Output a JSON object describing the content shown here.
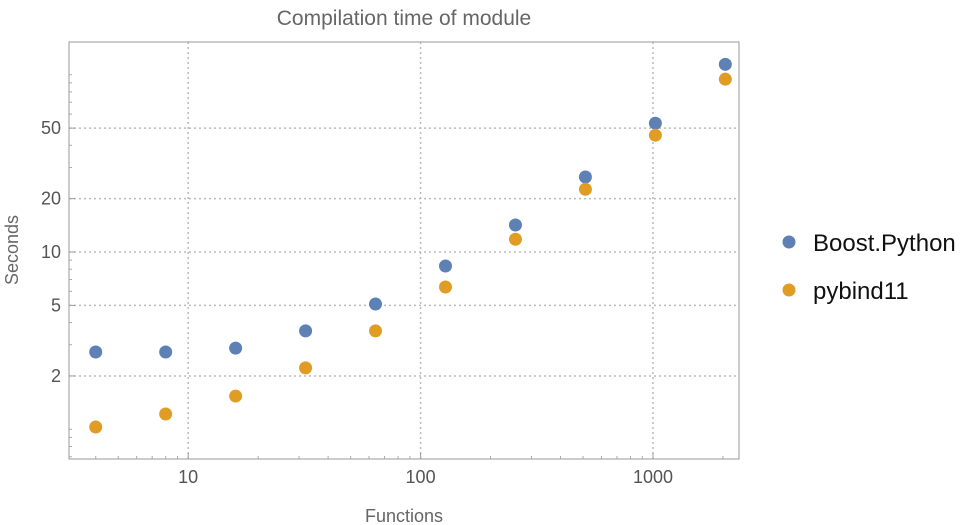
{
  "chart_data": {
    "type": "scatter",
    "title": "Compilation time of module",
    "xlabel": "Functions",
    "ylabel": "Seconds",
    "xscale": "log",
    "yscale": "log",
    "xlim": [
      3.07,
      2345
    ],
    "ylim": [
      0.68,
      153
    ],
    "grid": true,
    "legend_position": "right",
    "x_ticks": [
      {
        "value": 10,
        "label": "10"
      },
      {
        "value": 100,
        "label": "100"
      },
      {
        "value": 1000,
        "label": "1000"
      }
    ],
    "y_ticks": [
      {
        "value": 2,
        "label": "2"
      },
      {
        "value": 5,
        "label": "5"
      },
      {
        "value": 10,
        "label": "10"
      },
      {
        "value": 20,
        "label": "20"
      },
      {
        "value": 50,
        "label": "50"
      }
    ],
    "x": [
      4,
      8,
      16,
      32,
      64,
      128,
      256,
      512,
      1024,
      2048
    ],
    "series": [
      {
        "name": "Boost.Python",
        "color": "#5E81B5",
        "values": [
          2.73,
          2.73,
          2.87,
          3.59,
          5.09,
          8.34,
          14.2,
          26.5,
          53.3,
          114.5
        ]
      },
      {
        "name": "pybind11",
        "color": "#E19C24",
        "values": [
          1.03,
          1.22,
          1.54,
          2.22,
          3.59,
          6.35,
          11.8,
          22.6,
          45.6,
          94.4
        ]
      }
    ]
  }
}
